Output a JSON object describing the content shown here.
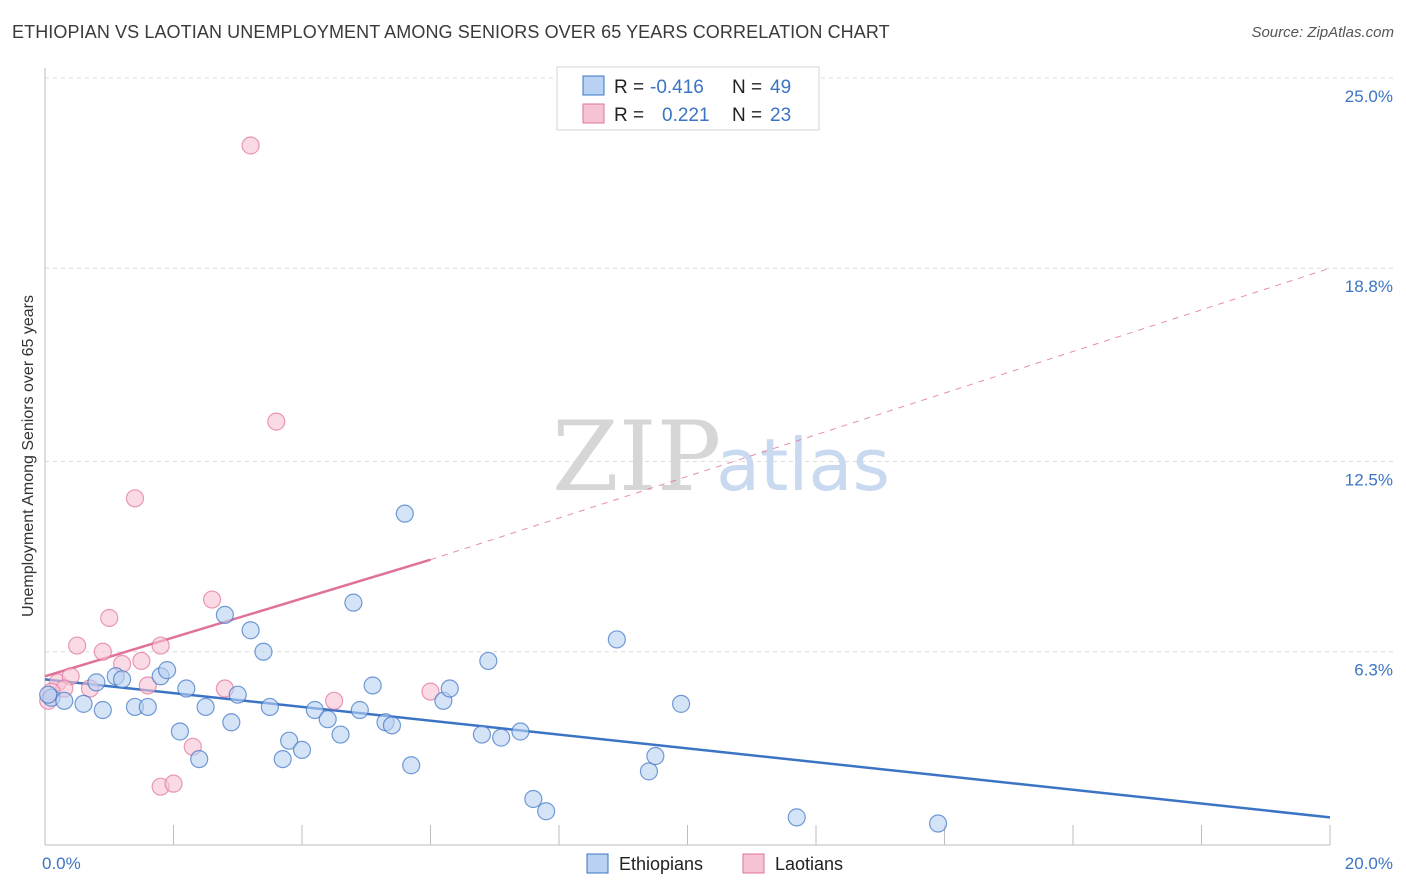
{
  "title": "ETHIOPIAN VS LAOTIAN UNEMPLOYMENT AMONG SENIORS OVER 65 YEARS CORRELATION CHART",
  "source": "Source: ZipAtlas.com",
  "watermark": {
    "zip": "ZIP",
    "atlas": "atlas"
  },
  "colors": {
    "blue": "#3b74c4",
    "blue_fill": "#b9d1f2",
    "pink": "#e0719b",
    "pink_fill": "#f6c3d4"
  },
  "legend": {
    "r_label": "R =",
    "n_label": "N =",
    "rows": [
      {
        "r": "-0.416",
        "n": "49"
      },
      {
        "r": "0.221",
        "n": "23"
      }
    ]
  },
  "chart_data": {
    "type": "scatter",
    "title": "ETHIOPIAN VS LAOTIAN UNEMPLOYMENT AMONG SENIORS OVER 65 YEARS CORRELATION CHART",
    "ylabel": "Unemployment Among Seniors over 65 years",
    "xlabel": "",
    "xlim": [
      0,
      20
    ],
    "ylim": [
      0,
      25
    ],
    "x_tick_labels": [
      "0.0%",
      "20.0%"
    ],
    "y_tick_labels": [
      {
        "value": 25.0,
        "label": "25.0%"
      },
      {
        "value": 18.8,
        "label": "18.8%"
      },
      {
        "value": 12.5,
        "label": "12.5%"
      },
      {
        "value": 6.3,
        "label": "6.3%"
      }
    ],
    "series": [
      {
        "name": "Ethiopians",
        "color": "#3b74c4",
        "r": -0.416,
        "n": 49,
        "points": [
          [
            0.1,
            4.8
          ],
          [
            0.3,
            4.7
          ],
          [
            0.6,
            4.6
          ],
          [
            0.9,
            4.4
          ],
          [
            0.8,
            5.3
          ],
          [
            1.1,
            5.5
          ],
          [
            1.2,
            5.4
          ],
          [
            1.4,
            4.5
          ],
          [
            1.6,
            4.5
          ],
          [
            1.8,
            5.5
          ],
          [
            1.9,
            5.7
          ],
          [
            2.1,
            3.7
          ],
          [
            2.2,
            5.1
          ],
          [
            2.4,
            2.8
          ],
          [
            2.5,
            4.5
          ],
          [
            2.8,
            7.5
          ],
          [
            2.9,
            4.0
          ],
          [
            3.0,
            4.9
          ],
          [
            3.2,
            7.0
          ],
          [
            3.4,
            6.3
          ],
          [
            3.5,
            4.5
          ],
          [
            3.7,
            2.8
          ],
          [
            3.8,
            3.4
          ],
          [
            4.0,
            3.1
          ],
          [
            4.2,
            4.4
          ],
          [
            4.4,
            4.1
          ],
          [
            4.6,
            3.6
          ],
          [
            4.8,
            7.9
          ],
          [
            4.9,
            4.4
          ],
          [
            5.1,
            5.2
          ],
          [
            5.3,
            4.0
          ],
          [
            5.4,
            3.9
          ],
          [
            5.6,
            10.8
          ],
          [
            5.7,
            2.6
          ],
          [
            6.2,
            4.7
          ],
          [
            6.3,
            5.1
          ],
          [
            6.8,
            3.6
          ],
          [
            6.9,
            6.0
          ],
          [
            7.1,
            3.5
          ],
          [
            7.4,
            3.7
          ],
          [
            7.6,
            1.5
          ],
          [
            7.8,
            1.1
          ],
          [
            8.9,
            6.7
          ],
          [
            9.4,
            2.4
          ],
          [
            9.5,
            2.9
          ],
          [
            9.9,
            4.6
          ],
          [
            11.7,
            0.9
          ],
          [
            13.9,
            0.7
          ],
          [
            0.05,
            4.9
          ]
        ]
      },
      {
        "name": "Laotians",
        "color": "#e0719b",
        "r": 0.221,
        "n": 23,
        "points": [
          [
            0.05,
            4.7
          ],
          [
            0.2,
            5.3
          ],
          [
            0.4,
            5.5
          ],
          [
            0.5,
            6.5
          ],
          [
            0.7,
            5.1
          ],
          [
            0.9,
            6.3
          ],
          [
            1.0,
            7.4
          ],
          [
            1.2,
            5.9
          ],
          [
            1.4,
            11.3
          ],
          [
            1.5,
            6.0
          ],
          [
            1.6,
            5.2
          ],
          [
            1.8,
            6.5
          ],
          [
            1.8,
            1.9
          ],
          [
            2.0,
            2.0
          ],
          [
            2.3,
            3.2
          ],
          [
            2.6,
            8.0
          ],
          [
            2.8,
            5.1
          ],
          [
            3.2,
            22.8
          ],
          [
            3.6,
            13.8
          ],
          [
            4.5,
            4.7
          ],
          [
            6.0,
            5.0
          ],
          [
            0.3,
            5.1
          ],
          [
            0.1,
            5.0
          ]
        ]
      }
    ],
    "trendlines": [
      {
        "series": "Ethiopians",
        "x0": 0,
        "y0": 5.4,
        "x1": 20,
        "y1": 0.9,
        "style": "solid"
      },
      {
        "series": "Laotians",
        "x0": 0,
        "y0": 5.5,
        "x1": 6,
        "y1": 9.3,
        "style": "solid"
      },
      {
        "series": "Laotians",
        "x0": 6,
        "y0": 9.3,
        "x1": 20,
        "y1": 18.8,
        "style": "dashed"
      }
    ],
    "legend": [
      "Ethiopians",
      "Laotians"
    ],
    "grid": true
  }
}
